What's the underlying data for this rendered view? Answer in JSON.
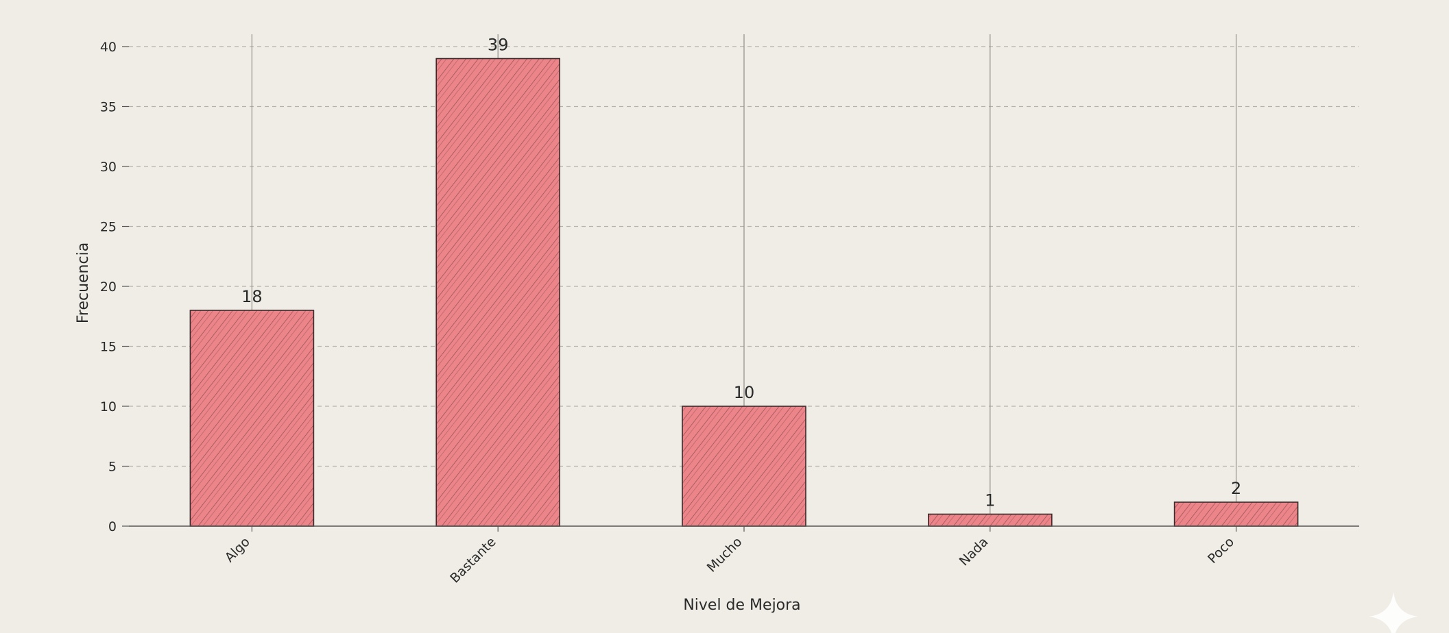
{
  "chart_data": {
    "type": "bar",
    "title": "",
    "xlabel": "Nivel de Mejora",
    "ylabel": "Frecuencia",
    "categories": [
      "Algo",
      "Bastante",
      "Mucho",
      "Nada",
      "Poco"
    ],
    "values": [
      18,
      39,
      10,
      1,
      2
    ],
    "data_labels": [
      "18",
      "39",
      "10",
      "1",
      "2"
    ],
    "y_ticks": [
      "0",
      "5",
      "10",
      "15",
      "20",
      "25",
      "30",
      "35",
      "40"
    ],
    "ylim": [
      0,
      41
    ],
    "grid": "horizontal dashed",
    "bar_color": "#ec858a",
    "hatch": "diagonal",
    "colors": {
      "background": "#efede6",
      "bar_fill": "#ec858a",
      "bar_edge": "#3a2a2a",
      "grid": "#b5b2aa",
      "axis": "#555555"
    }
  }
}
